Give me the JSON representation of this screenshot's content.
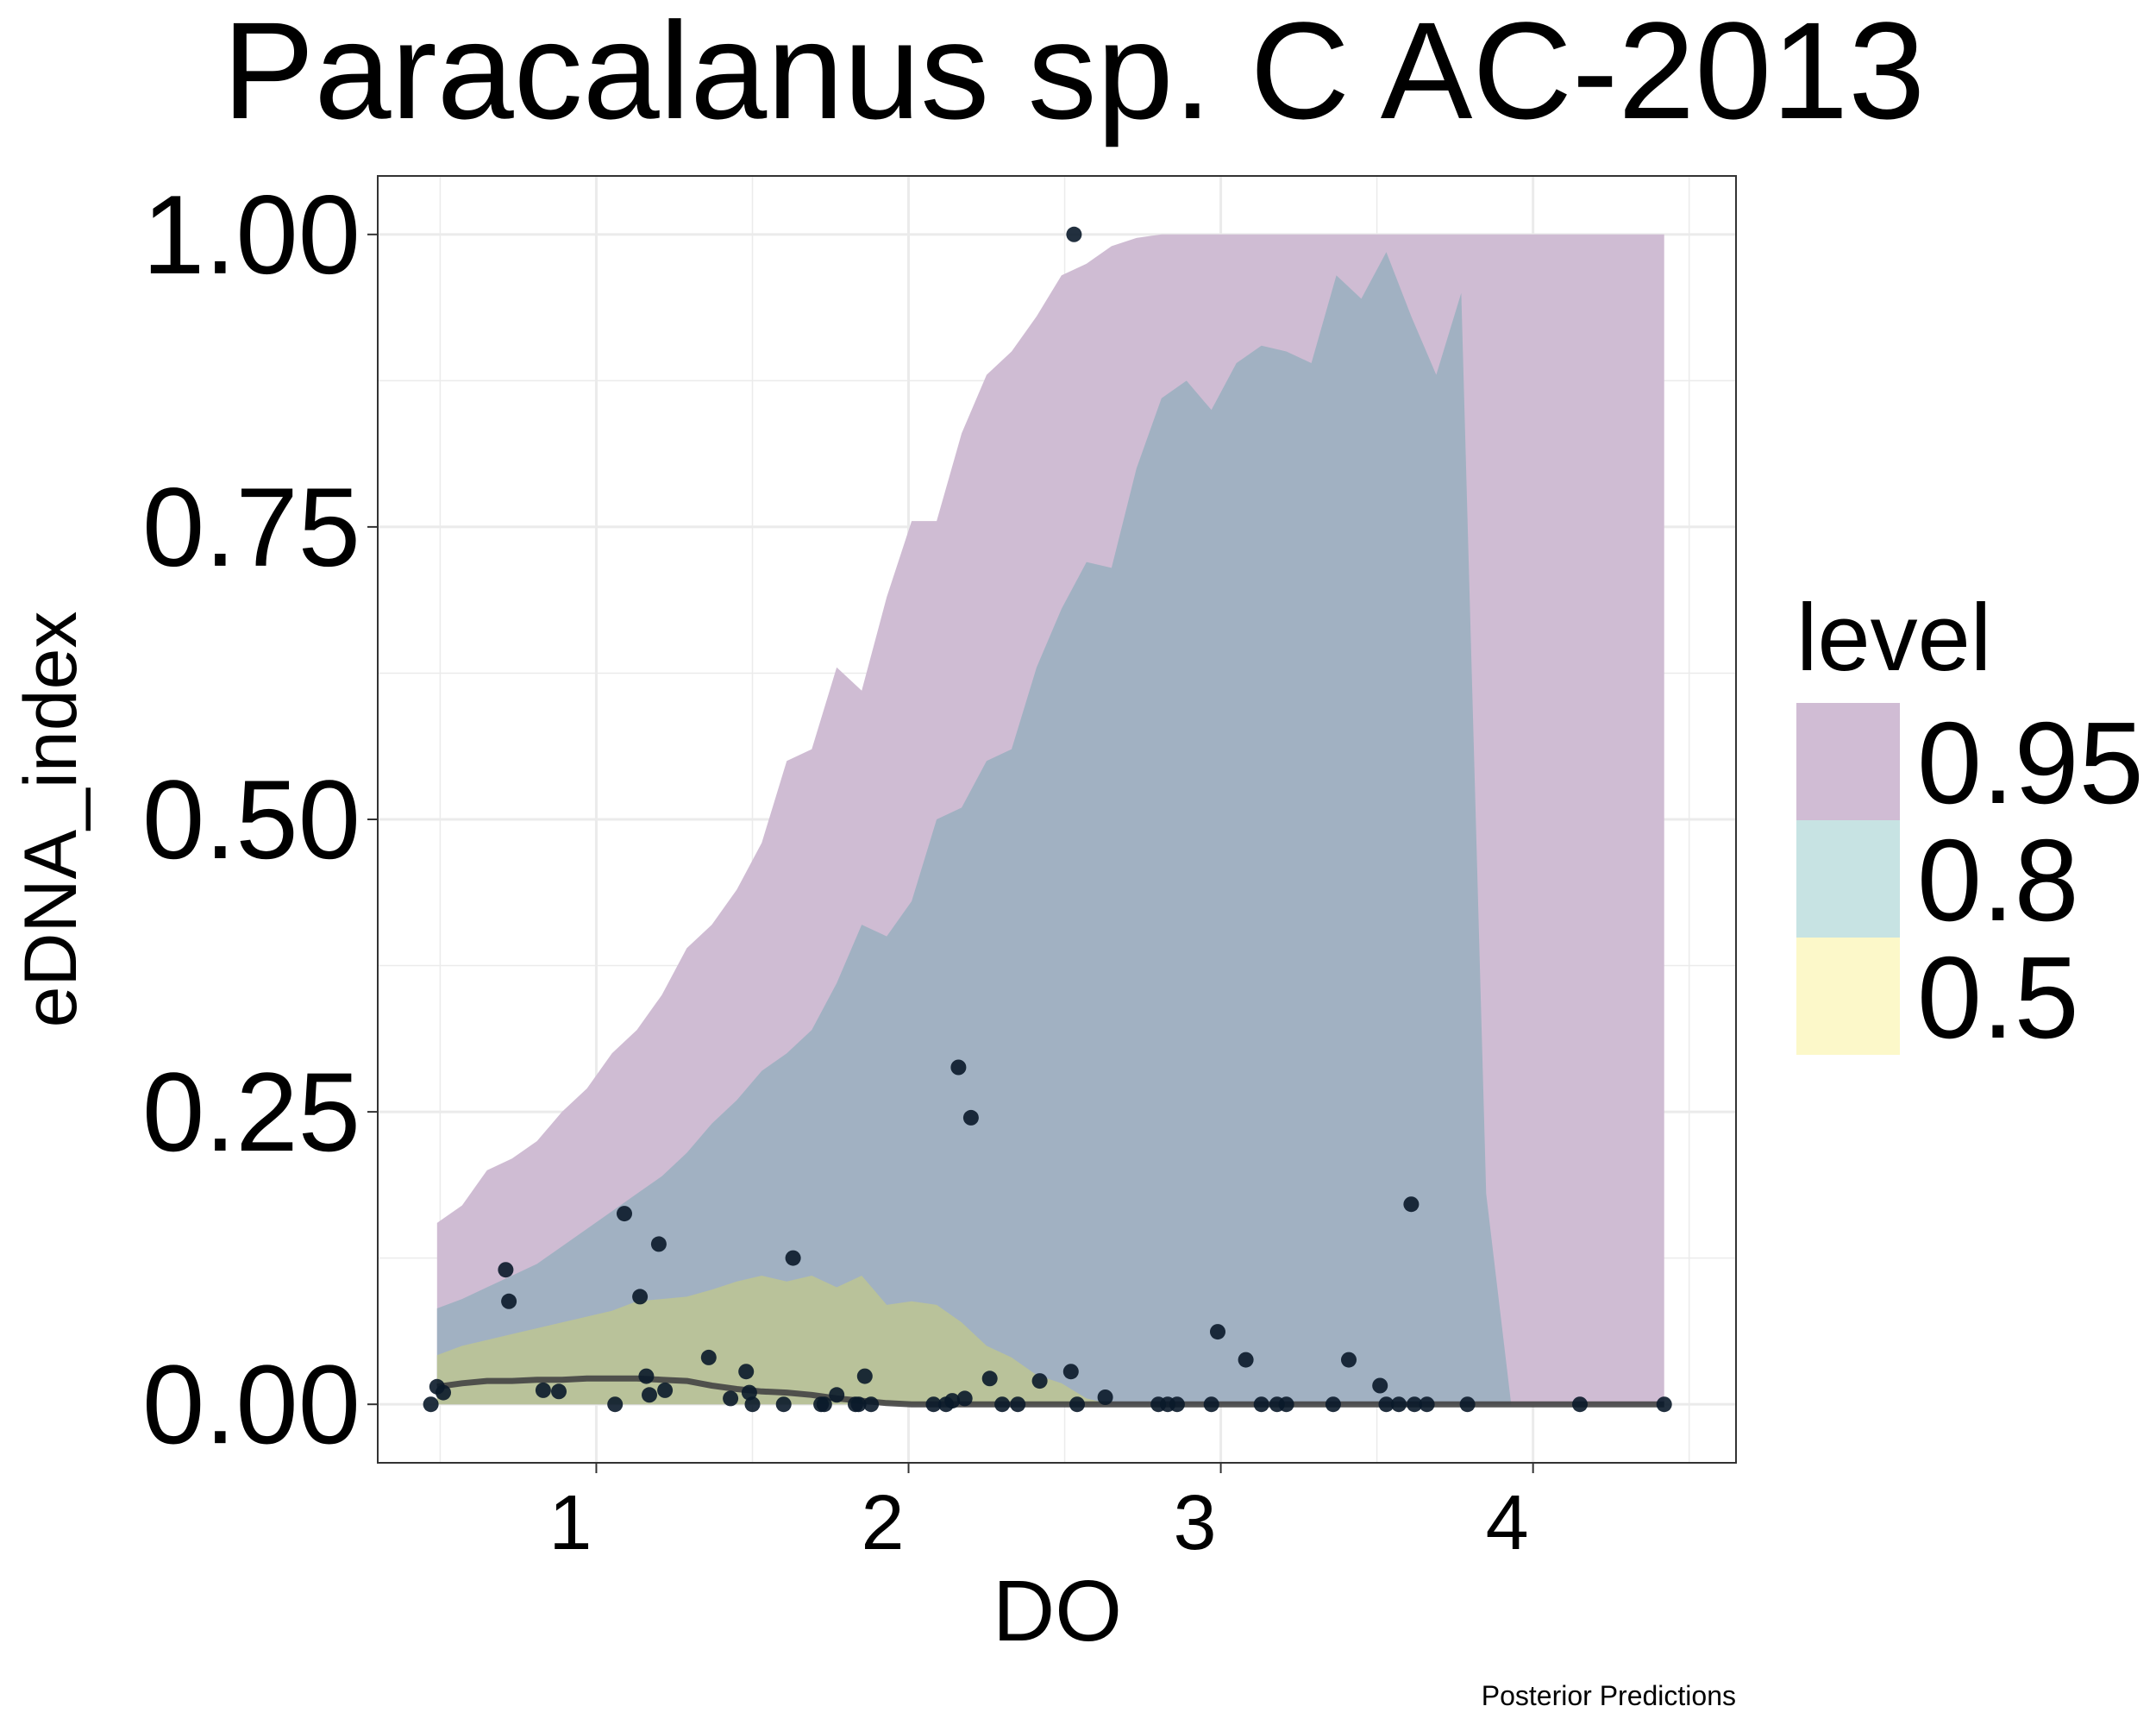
{
  "chart_data": {
    "type": "area",
    "title": "Paracalanus sp. C AC-2013",
    "xlabel": "DO",
    "ylabel": "eDNA_index",
    "caption": "Posterior Predictions",
    "xlim": [
      0.3,
      4.65
    ],
    "ylim": [
      -0.05,
      1.05
    ],
    "x_ticks": [
      1,
      2,
      3,
      4
    ],
    "x_tick_labels": [
      "1",
      "2",
      "3",
      "4"
    ],
    "y_ticks": [
      0,
      0.25,
      0.5,
      0.75,
      1.0
    ],
    "y_tick_labels": [
      "0.00",
      "0.25",
      "0.50",
      "0.75",
      "1.00"
    ],
    "grid": true,
    "legend": {
      "title": "level",
      "position": "right",
      "entries": [
        {
          "label": "0.95",
          "color": "#d0bcd4"
        },
        {
          "label": "0.8",
          "color": "#c7e3e3"
        },
        {
          "label": "0.5",
          "color": "#fcf8c9"
        }
      ]
    },
    "colors": {
      "band_095": "#cfbcd3",
      "band_080": "#a1b1c2",
      "band_050": "#b9c29a",
      "median_line": "#444444",
      "points": "#0a1a2a",
      "grid": "#ebebeb",
      "panel_border": "#333333"
    },
    "x": [
      0.49,
      0.57,
      0.65,
      0.73,
      0.81,
      0.89,
      0.97,
      1.05,
      1.13,
      1.21,
      1.29,
      1.37,
      1.45,
      1.53,
      1.61,
      1.69,
      1.77,
      1.85,
      1.93,
      2.01,
      2.09,
      2.17,
      2.25,
      2.33,
      2.41,
      2.49,
      2.57,
      2.65,
      2.73,
      2.81,
      2.89,
      2.97,
      3.05,
      3.13,
      3.21,
      3.29,
      3.37,
      3.45,
      3.53,
      3.61,
      3.69,
      3.77,
      3.85,
      3.93,
      4.01,
      4.09,
      4.17,
      4.25,
      4.33,
      4.42
    ],
    "bands": [
      {
        "level": "0.95",
        "lower": [
          0,
          0,
          0,
          0,
          0,
          0,
          0,
          0,
          0,
          0,
          0,
          0,
          0,
          0,
          0,
          0,
          0,
          0,
          0,
          0,
          0,
          0,
          0,
          0,
          0,
          0,
          0,
          0,
          0,
          0,
          0,
          0,
          0,
          0,
          0,
          0,
          0,
          0,
          0,
          0,
          0,
          0,
          0,
          0,
          0,
          0,
          0,
          0,
          0,
          0
        ],
        "upper": [
          0.155,
          0.17,
          0.2,
          0.21,
          0.225,
          0.25,
          0.27,
          0.3,
          0.32,
          0.35,
          0.39,
          0.41,
          0.44,
          0.48,
          0.55,
          0.56,
          0.63,
          0.61,
          0.69,
          0.755,
          0.755,
          0.83,
          0.88,
          0.9,
          0.93,
          0.965,
          0.975,
          0.99,
          0.997,
          1.0,
          1.0,
          1.0,
          1.0,
          1.0,
          1.0,
          1.0,
          1.0,
          1.0,
          1.0,
          1.0,
          1.0,
          1.0,
          1.0,
          1.0,
          1.0,
          1.0,
          1.0,
          1.0,
          1.0,
          1.0
        ]
      },
      {
        "level": "0.8",
        "lower": [
          0,
          0,
          0,
          0,
          0,
          0,
          0,
          0,
          0,
          0,
          0,
          0,
          0,
          0,
          0,
          0,
          0,
          0,
          0,
          0,
          0,
          0,
          0,
          0,
          0,
          0,
          0,
          0,
          0,
          0,
          0,
          0,
          0,
          0,
          0,
          0,
          0,
          0,
          0,
          0,
          0,
          0,
          0,
          0,
          0,
          0,
          0,
          0,
          0,
          0
        ],
        "upper": [
          0.082,
          0.09,
          0.1,
          0.11,
          0.12,
          0.135,
          0.15,
          0.165,
          0.18,
          0.195,
          0.215,
          0.24,
          0.26,
          0.285,
          0.3,
          0.32,
          0.36,
          0.41,
          0.4,
          0.43,
          0.5,
          0.51,
          0.55,
          0.56,
          0.63,
          0.68,
          0.72,
          0.715,
          0.8,
          0.86,
          0.875,
          0.85,
          0.89,
          0.905,
          0.9,
          0.89,
          0.965,
          0.945,
          0.985,
          0.93,
          0.88,
          0.95,
          0.18,
          0.0,
          0.0,
          0.0,
          0.0,
          0.0,
          0.0,
          0.0
        ]
      },
      {
        "level": "0.5",
        "lower": [
          0,
          0,
          0,
          0,
          0,
          0,
          0,
          0,
          0,
          0,
          0,
          0,
          0,
          0,
          0,
          0,
          0,
          0,
          0,
          0,
          0,
          0,
          0,
          0,
          0,
          0,
          0,
          0,
          0,
          0,
          0,
          0,
          0,
          0,
          0,
          0,
          0,
          0,
          0,
          0,
          0,
          0,
          0,
          0,
          0,
          0,
          0,
          0,
          0,
          0
        ],
        "upper": [
          0.042,
          0.05,
          0.055,
          0.06,
          0.065,
          0.07,
          0.075,
          0.08,
          0.088,
          0.09,
          0.092,
          0.098,
          0.105,
          0.11,
          0.105,
          0.11,
          0.1,
          0.11,
          0.085,
          0.088,
          0.085,
          0.07,
          0.05,
          0.04,
          0.025,
          0.018,
          0.005,
          0.0,
          0.0,
          0.0,
          0.0,
          0.0,
          0.0,
          0.0,
          0.0,
          0.0,
          0.0,
          0.0,
          0.0,
          0.0,
          0.0,
          0.0,
          0.0,
          0.0,
          0.0,
          0.0,
          0.0,
          0.0,
          0.0,
          0.0
        ]
      }
    ],
    "median": [
      0.015,
      0.018,
      0.02,
      0.02,
      0.021,
      0.021,
      0.022,
      0.022,
      0.022,
      0.021,
      0.02,
      0.016,
      0.013,
      0.011,
      0.01,
      0.008,
      0.005,
      0.003,
      0.001,
      0.0,
      0.0,
      0.0,
      0.0,
      0.0,
      0.0,
      0.0,
      0.0,
      0.0,
      0.0,
      0.0,
      0.0,
      0.0,
      0.0,
      0.0,
      0.0,
      0.0,
      0.0,
      0.0,
      0.0,
      0.0,
      0.0,
      0.0,
      0.0,
      0.0,
      0.0,
      0.0,
      0.0,
      0.0,
      0.0,
      0.0
    ],
    "points": {
      "x": [
        0.47,
        0.49,
        0.51,
        0.71,
        0.72,
        0.83,
        0.88,
        1.06,
        1.09,
        1.14,
        1.16,
        1.17,
        1.2,
        1.22,
        1.36,
        1.43,
        1.48,
        1.49,
        1.5,
        1.6,
        1.63,
        1.72,
        1.73,
        1.77,
        1.83,
        1.84,
        1.86,
        1.88,
        2.08,
        2.12,
        2.14,
        2.16,
        2.18,
        2.2,
        2.26,
        2.3,
        2.35,
        2.42,
        2.52,
        2.53,
        2.54,
        2.63,
        2.8,
        2.83,
        2.86,
        2.97,
        2.99,
        3.08,
        3.13,
        3.18,
        3.21,
        3.36,
        3.41,
        3.51,
        3.53,
        3.57,
        3.61,
        3.62,
        3.66,
        3.79,
        4.15,
        4.42
      ],
      "y": [
        0.0,
        0.015,
        0.01,
        0.115,
        0.088,
        0.012,
        0.011,
        0.0,
        0.163,
        0.092,
        0.024,
        0.008,
        0.137,
        0.012,
        0.04,
        0.005,
        0.028,
        0.01,
        0.0,
        0.0,
        0.125,
        0.0,
        0.0,
        0.008,
        0.0,
        0.0,
        0.024,
        0.0,
        0.0,
        0.0,
        0.003,
        0.288,
        0.005,
        0.245,
        0.022,
        0.0,
        0.0,
        0.02,
        0.028,
        1.0,
        0.0,
        0.006,
        0.0,
        0.0,
        0.0,
        0.0,
        0.062,
        0.038,
        0.0,
        0.0,
        0.0,
        0.0,
        0.038,
        0.016,
        0.0,
        0.0,
        0.171,
        0.0,
        0.0,
        0.0,
        0.0,
        0.0
      ]
    }
  }
}
